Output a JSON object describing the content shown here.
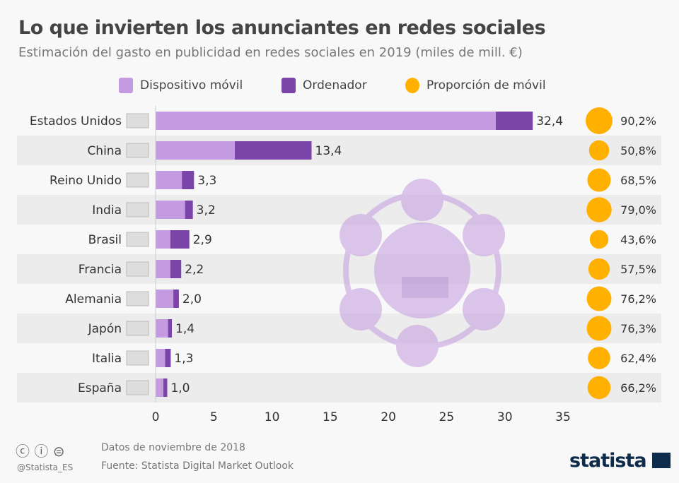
{
  "title": "Lo que invierten los anunciantes en redes sociales",
  "subtitle": "Estimación del gasto en publicidad en redes sociales en 2019 (miles de mill. €)",
  "legend": [
    {
      "label": "Dispositivo móvil",
      "color": "#c49be0"
    },
    {
      "label": "Ordenador",
      "color": "#7b44a8"
    },
    {
      "label": "Proporción de móvil",
      "color": "#ffb000"
    }
  ],
  "chart_data": {
    "type": "bar",
    "stacked": true,
    "orientation": "horizontal",
    "categories": [
      "Estados Unidos",
      "China",
      "Reino Unido",
      "India",
      "Brasil",
      "Francia",
      "Alemania",
      "Japón",
      "Italia",
      "España"
    ],
    "totals": [
      32.4,
      13.4,
      3.3,
      3.2,
      2.9,
      2.2,
      2.0,
      1.4,
      1.3,
      1.0
    ],
    "total_labels": [
      "32,4",
      "13,4",
      "3,3",
      "3,2",
      "2,9",
      "2,2",
      "2,0",
      "1,4",
      "1,3",
      "1,0"
    ],
    "mobile_share": [
      90.2,
      50.8,
      68.5,
      79.0,
      43.6,
      57.5,
      76.2,
      76.3,
      62.4,
      66.2
    ],
    "mobile_share_labels": [
      "90,2%",
      "50,8%",
      "68,5%",
      "79,0%",
      "43,6%",
      "57,5%",
      "76,2%",
      "76,3%",
      "62,4%",
      "66,2%"
    ],
    "series": [
      {
        "name": "Dispositivo móvil"
      },
      {
        "name": "Ordenador"
      },
      {
        "name": "Proporción de móvil"
      }
    ],
    "xlim": [
      0,
      35
    ],
    "xticks": [
      "0",
      "5",
      "10",
      "15",
      "20",
      "25",
      "30",
      "35"
    ],
    "grid": false,
    "legend_position": "top"
  },
  "footer": {
    "date": "Datos de noviembre de 2018",
    "source": "Fuente: Statista Digital Market Outlook",
    "handle": "@Statista_ES",
    "brand": "statista"
  }
}
